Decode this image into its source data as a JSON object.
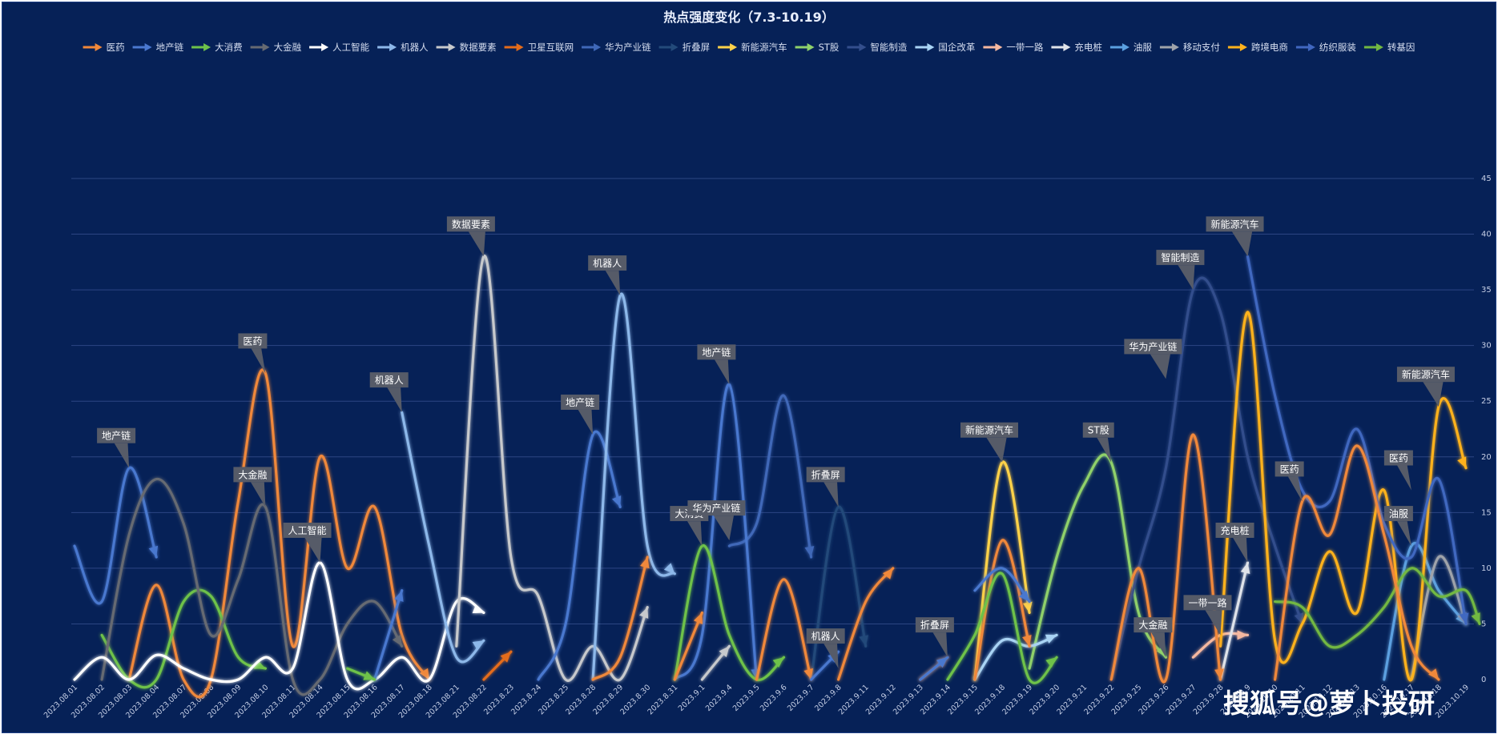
{
  "chart_data": {
    "type": "line",
    "title": "热点强度变化（7.3-10.19）",
    "ylim": [
      0,
      45
    ],
    "yticks": [
      0,
      5,
      10,
      15,
      20,
      25,
      30,
      35,
      40,
      45
    ],
    "grid": true,
    "legend_position": "top",
    "categories": [
      "2023.08.01",
      "2023.08.02",
      "2023.08.03",
      "2023.08.04",
      "2023.08.07",
      "2023.08.08",
      "2023.08.09",
      "2023.08.10",
      "2023.08.11",
      "2023.08.14",
      "2023.08.15",
      "2023.08.16",
      "2023.08.17",
      "2023.08.18",
      "2023.08.21",
      "2023.08.22",
      "2023.8.23",
      "2023.8.24",
      "2023.8.25",
      "2023.8.28",
      "2023.8.29",
      "2023.8.30",
      "2023.8.31",
      "2023.9.1",
      "2023.9.4",
      "2023.9.5",
      "2023.9.6",
      "2023.9.7",
      "2023.9.8",
      "2023.9.11",
      "2023.9.12",
      "2023.9.13",
      "2023.9.14",
      "2023.9.15",
      "2023.9.18",
      "2023.9.19",
      "2023.9.20",
      "2023.9.21",
      "2023.9.22",
      "2023.9.25",
      "2023.9.26",
      "2023.9.27",
      "2023.9.28",
      "2023.10.9",
      "2023.10.10",
      "2023.10.11",
      "2023.10.12",
      "2023.10.13",
      "2023.10.16",
      "2023.10.17",
      "2023.10.18",
      "2023.10.19"
    ],
    "series": [
      {
        "name": "医药",
        "color": "#f0883a",
        "points": [
          [
            2,
            0
          ],
          [
            3,
            8.5
          ],
          [
            4,
            0
          ],
          [
            5,
            0
          ],
          [
            6,
            16
          ],
          [
            7,
            27.5
          ],
          [
            8,
            3
          ],
          [
            9,
            20
          ],
          [
            10,
            10
          ],
          [
            11,
            15.5
          ],
          [
            12,
            4
          ],
          [
            13,
            0
          ]
        ]
      },
      {
        "name": "地产链",
        "color": "#4a78cf",
        "points": [
          [
            0,
            12
          ],
          [
            1,
            7
          ],
          [
            2,
            19
          ],
          [
            3,
            11
          ]
        ]
      },
      {
        "name": "大消费",
        "color": "#6ec24a",
        "points": [
          [
            1,
            4
          ],
          [
            2,
            0
          ],
          [
            3,
            0
          ],
          [
            4,
            7
          ],
          [
            5,
            7.5
          ],
          [
            6,
            2
          ],
          [
            7,
            1
          ]
        ]
      },
      {
        "name": "大金融",
        "color": "#666a72",
        "points": [
          [
            1,
            0
          ],
          [
            2,
            13
          ],
          [
            3,
            18
          ],
          [
            4,
            14
          ],
          [
            5,
            4
          ],
          [
            6,
            9
          ],
          [
            7,
            15.5
          ],
          [
            8,
            0
          ],
          [
            9,
            0
          ],
          [
            10,
            5
          ],
          [
            11,
            7
          ],
          [
            12,
            3
          ]
        ]
      },
      {
        "name": "人工智能",
        "color": "#ffffff",
        "points": [
          [
            0,
            0
          ],
          [
            1,
            2
          ],
          [
            2,
            0
          ],
          [
            3,
            2.2
          ],
          [
            4,
            1
          ],
          [
            5,
            0
          ],
          [
            6,
            0
          ],
          [
            7,
            2
          ],
          [
            8,
            1
          ],
          [
            9,
            10.5
          ],
          [
            10,
            0
          ],
          [
            11,
            0
          ],
          [
            12,
            2
          ],
          [
            13,
            0
          ],
          [
            14,
            7
          ],
          [
            15,
            6
          ]
        ]
      },
      {
        "name": "机器人",
        "color": "#8db8ea",
        "points": [
          [
            12,
            24
          ],
          [
            13,
            12
          ],
          [
            14,
            2
          ],
          [
            15,
            3.5
          ]
        ]
      },
      {
        "name": "数据要素",
        "color": "#c7c9cc",
        "points": [
          [
            14,
            3
          ],
          [
            15,
            38
          ],
          [
            16,
            11
          ],
          [
            17,
            7.5
          ],
          [
            18,
            0
          ],
          [
            19,
            3
          ],
          [
            20,
            0
          ],
          [
            21,
            6.5
          ]
        ]
      },
      {
        "name": "卫星互联网",
        "color": "#e46c1a",
        "points": [
          [
            15,
            0
          ],
          [
            16,
            2.5
          ]
        ]
      },
      {
        "name": "华为产业链",
        "color": "#3f68b8",
        "points": [
          [
            24,
            12
          ],
          [
            25,
            14
          ],
          [
            26,
            25.5
          ],
          [
            27,
            11
          ]
        ]
      },
      {
        "name": "折叠屏",
        "color": "#234a7a",
        "points": [
          [
            27,
            0
          ],
          [
            28,
            15.5
          ],
          [
            29,
            3
          ]
        ]
      },
      {
        "name": "新能源汽车",
        "color": "#ffd24a",
        "points": [
          [
            33,
            0
          ],
          [
            34,
            19.5
          ],
          [
            35,
            6
          ]
        ]
      },
      {
        "name": "ST股",
        "color": "#8fd16b",
        "points": [
          [
            35,
            1
          ],
          [
            36,
            11
          ],
          [
            37,
            17.5
          ],
          [
            38,
            19.5
          ],
          [
            39,
            6
          ],
          [
            40,
            2
          ]
        ]
      },
      {
        "name": "智能制造",
        "color": "#334e8c",
        "points": [
          [
            38,
            0
          ],
          [
            39,
            10
          ],
          [
            40,
            19
          ],
          [
            41,
            35
          ],
          [
            42,
            33
          ],
          [
            43,
            20
          ],
          [
            44,
            12
          ],
          [
            45,
            5
          ]
        ]
      },
      {
        "name": "国企改革",
        "color": "#a9d4f5",
        "points": [
          [
            33,
            0
          ],
          [
            34,
            3.5
          ],
          [
            35,
            3
          ],
          [
            36,
            4
          ]
        ]
      },
      {
        "name": "一带一路",
        "color": "#f5b8a0",
        "points": [
          [
            41,
            2
          ],
          [
            42,
            4
          ],
          [
            43,
            4
          ]
        ]
      },
      {
        "name": "充电桩",
        "color": "#dfe3ea",
        "points": [
          [
            42,
            0
          ],
          [
            43,
            10.5
          ]
        ]
      },
      {
        "name": "油服",
        "color": "#5ba0e0",
        "points": [
          [
            48,
            0
          ],
          [
            49,
            12
          ],
          [
            50,
            8
          ],
          [
            51,
            5
          ]
        ]
      },
      {
        "name": "移动支付",
        "color": "#9fa3aa",
        "points": [
          [
            49,
            0
          ],
          [
            50,
            11
          ],
          [
            51,
            5
          ]
        ]
      },
      {
        "name": "跨境电商",
        "color": "#ffb21c",
        "points": [
          [
            42,
            3
          ],
          [
            43,
            33
          ],
          [
            44,
            3.5
          ],
          [
            45,
            5
          ],
          [
            46,
            11.5
          ],
          [
            47,
            6
          ],
          [
            48,
            17
          ],
          [
            49,
            0
          ],
          [
            50,
            24.5
          ],
          [
            51,
            19
          ]
        ]
      },
      {
        "name": "纺织服装",
        "color": "#4067c0",
        "points": [
          [
            43,
            38
          ],
          [
            44,
            25.5
          ],
          [
            45,
            17
          ],
          [
            46,
            16
          ],
          [
            47,
            22.5
          ],
          [
            48,
            14
          ],
          [
            49,
            11
          ],
          [
            50,
            18
          ],
          [
            51,
            5
          ]
        ]
      },
      {
        "name": "转基因",
        "color": "#72b842",
        "points": [
          [
            44,
            7
          ],
          [
            45,
            6.5
          ],
          [
            46,
            3
          ],
          [
            47,
            4
          ],
          [
            48,
            6.5
          ],
          [
            49,
            10
          ],
          [
            50,
            7.5
          ],
          [
            51,
            8
          ],
          [
            51.5,
            5
          ]
        ]
      },
      {
        "name": "",
        "color": "#4a78cf",
        "points": [
          [
            17,
            0
          ],
          [
            18,
            5
          ],
          [
            19,
            22
          ],
          [
            20,
            15.5
          ]
        ]
      },
      {
        "name": "",
        "color": "#8db8ea",
        "points": [
          [
            19,
            0
          ],
          [
            20,
            34.5
          ],
          [
            21,
            12
          ],
          [
            22,
            9.5
          ]
        ]
      },
      {
        "name": "",
        "color": "#4a78cf",
        "points": [
          [
            22,
            0
          ],
          [
            23,
            4
          ],
          [
            24,
            26.5
          ],
          [
            25,
            0
          ]
        ]
      },
      {
        "name": "",
        "color": "#6ec24a",
        "points": [
          [
            22,
            0
          ],
          [
            23,
            12
          ],
          [
            24,
            4
          ],
          [
            25,
            0
          ],
          [
            26,
            2
          ]
        ]
      },
      {
        "name": "",
        "color": "#f0883a",
        "points": [
          [
            19,
            0
          ],
          [
            20,
            2
          ],
          [
            21,
            11
          ]
        ]
      },
      {
        "name": "",
        "color": "#f0883a",
        "points": [
          [
            25,
            0
          ],
          [
            26,
            9
          ],
          [
            27,
            0
          ]
        ]
      },
      {
        "name": "",
        "color": "#f0883a",
        "points": [
          [
            28,
            0
          ],
          [
            29,
            7
          ],
          [
            30,
            10
          ]
        ]
      },
      {
        "name": "",
        "color": "#f0883a",
        "points": [
          [
            22,
            0
          ],
          [
            23,
            6
          ]
        ]
      },
      {
        "name": "",
        "color": "#f0883a",
        "points": [
          [
            31,
            0
          ],
          [
            32,
            2
          ]
        ]
      },
      {
        "name": "",
        "color": "#f0883a",
        "points": [
          [
            33,
            0
          ],
          [
            34,
            12.5
          ],
          [
            35,
            3
          ]
        ]
      },
      {
        "name": "",
        "color": "#f0883a",
        "points": [
          [
            38,
            0
          ],
          [
            39,
            10
          ],
          [
            40,
            0
          ],
          [
            41,
            22
          ],
          [
            42,
            0
          ]
        ]
      },
      {
        "name": "",
        "color": "#f0883a",
        "points": [
          [
            44,
            0
          ],
          [
            45,
            16
          ],
          [
            46,
            13
          ],
          [
            47,
            21
          ],
          [
            48,
            13
          ],
          [
            49,
            3
          ],
          [
            50,
            0
          ]
        ]
      },
      {
        "name": "",
        "color": "#4a78cf",
        "points": [
          [
            31,
            0
          ],
          [
            32,
            2
          ]
        ]
      },
      {
        "name": "",
        "color": "#4a78cf",
        "points": [
          [
            33,
            8
          ],
          [
            34,
            10
          ],
          [
            35,
            7
          ]
        ]
      },
      {
        "name": "",
        "color": "#6ec24a",
        "points": [
          [
            32,
            0
          ],
          [
            33,
            4
          ],
          [
            34,
            9.5
          ],
          [
            35,
            0
          ],
          [
            36,
            2
          ]
        ]
      },
      {
        "name": "",
        "color": "#4a78cf",
        "points": [
          [
            27,
            0
          ],
          [
            28,
            2.5
          ]
        ]
      },
      {
        "name": "",
        "color": "#c7c9cc",
        "points": [
          [
            23,
            0
          ],
          [
            24,
            3
          ]
        ]
      },
      {
        "name": "",
        "color": "#4a78cf",
        "points": [
          [
            11,
            0
          ],
          [
            12,
            8
          ]
        ]
      },
      {
        "name": "",
        "color": "#6ec24a",
        "points": [
          [
            10,
            1
          ],
          [
            11,
            0
          ]
        ]
      }
    ],
    "annotations": [
      {
        "text": "地产链",
        "x": 2,
        "y": 19
      },
      {
        "text": "医药",
        "x": 7,
        "y": 27.5
      },
      {
        "text": "大金融",
        "x": 7,
        "y": 15.5
      },
      {
        "text": "人工智能",
        "x": 9,
        "y": 10.5
      },
      {
        "text": "机器人",
        "x": 12,
        "y": 24
      },
      {
        "text": "数据要素",
        "x": 15,
        "y": 38
      },
      {
        "text": "地产链",
        "x": 19,
        "y": 22
      },
      {
        "text": "机器人",
        "x": 20,
        "y": 34.5
      },
      {
        "text": "大消费",
        "x": 23,
        "y": 12
      },
      {
        "text": "地产链",
        "x": 24,
        "y": 26.5
      },
      {
        "text": "华为产业链",
        "x": 24,
        "y": 12.5
      },
      {
        "text": "折叠屏",
        "x": 28,
        "y": 15.5
      },
      {
        "text": "机器人",
        "x": 28,
        "y": 1
      },
      {
        "text": "折叠屏",
        "x": 32,
        "y": 2
      },
      {
        "text": "新能源汽车",
        "x": 34,
        "y": 19.5
      },
      {
        "text": "ST股",
        "x": 38,
        "y": 19.5
      },
      {
        "text": "华为产业链",
        "x": 40,
        "y": 27
      },
      {
        "text": "智能制造",
        "x": 41,
        "y": 35
      },
      {
        "text": "大金融",
        "x": 40,
        "y": 2
      },
      {
        "text": "新能源汽车",
        "x": 43,
        "y": 38
      },
      {
        "text": "一带一路",
        "x": 42,
        "y": 4
      },
      {
        "text": "充电桩",
        "x": 43,
        "y": 10.5
      },
      {
        "text": "医药",
        "x": 45,
        "y": 16
      },
      {
        "text": "医药",
        "x": 49,
        "y": 17
      },
      {
        "text": "油服",
        "x": 49,
        "y": 12
      },
      {
        "text": "新能源汽车",
        "x": 50,
        "y": 24.5
      }
    ]
  },
  "watermark": "搜狐号@萝卜投研"
}
